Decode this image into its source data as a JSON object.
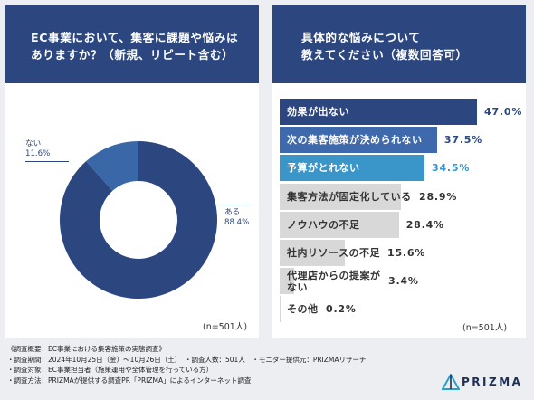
{
  "left": {
    "title_line1": "EC事業において、集客に課題や悩みは",
    "title_line2": "ありますか？（新規、リピート含む）",
    "n": "(n=501人)"
  },
  "right": {
    "title_line1": "具体的な悩みについて",
    "title_line2": "教えてください（複数回答可）",
    "n": "(n=501人)"
  },
  "chart_data": [
    {
      "type": "pie",
      "title": "EC事業において、集客に課題や悩みはありますか？（新規、リピート含む）",
      "slices": [
        {
          "label": "ある",
          "value": 88.4,
          "display": "88.4%",
          "color": "#2c4780"
        },
        {
          "label": "ない",
          "value": 11.6,
          "display": "11.6%",
          "color": "#3a67a8"
        }
      ],
      "note": "(n=501人)"
    },
    {
      "type": "bar",
      "orientation": "horizontal",
      "title": "具体的な悩みについて教えてください（複数回答可）",
      "categories": [
        "効果が出ない",
        "次の集客施策が決められない",
        "予算がとれない",
        "集客方法が固定化している",
        "ノウハウの不足",
        "社内リソースの不足",
        "代理店からの提案がない",
        "その他"
      ],
      "label_lines": [
        [
          "効果が出ない"
        ],
        [
          "次の集客施策が決められない"
        ],
        [
          "予算がとれない"
        ],
        [
          "集客方法が固定化している"
        ],
        [
          "ノウハウの不足"
        ],
        [
          "社内リソースの不足"
        ],
        [
          "代理店からの提案が",
          "ない"
        ],
        [
          "その他"
        ]
      ],
      "values": [
        47.0,
        37.5,
        34.5,
        28.9,
        28.4,
        15.6,
        3.4,
        0.2
      ],
      "display": [
        "47.0%",
        "37.5%",
        "34.5%",
        "28.9%",
        "28.4%",
        "15.6%",
        "3.4%",
        "0.2%"
      ],
      "bar_colors": [
        "#2c4780",
        "#3f69ad",
        "#3a95c9",
        "#d8d8d8",
        "#d8d8d8",
        "#d8d8d8",
        "#d8d8d8",
        "#d8d8d8"
      ],
      "text_colors": [
        "#ffffff",
        "#ffffff",
        "#ffffff",
        "#333333",
        "#333333",
        "#333333",
        "#333333",
        "#333333"
      ],
      "value_colors": [
        "#2c4780",
        "#2c4780",
        "#3a95c9",
        "#333333",
        "#333333",
        "#333333",
        "#333333",
        "#333333"
      ],
      "note": "(n=501人)"
    }
  ],
  "footer": {
    "line1": "《調査概要：EC事業における集客施策の実態調査》",
    "line2": "・調査期間：2024年10月25日（金）〜10月26日（土）　・調査人数：501人　・モニター提供元：PRIZMAリサーチ",
    "line3": "・調査対象：EC事業担当者（施策運用や全体管理を行っている方）",
    "line4": "・調査方法：PRIZMAが提供する調査PR「PRIZMA」によるインターネット調査"
  },
  "logo": {
    "text": "PRIZMA"
  }
}
